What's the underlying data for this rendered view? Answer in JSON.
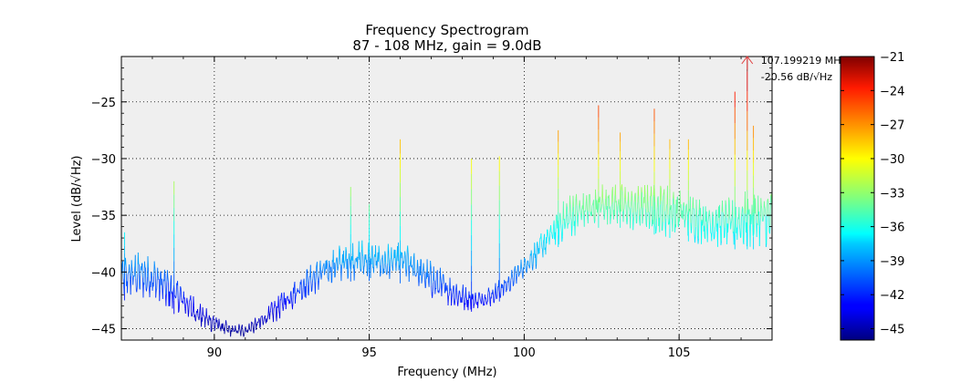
{
  "chart_data": {
    "type": "line",
    "title": "Frequency Spectrogram",
    "subtitle": "87 - 108 MHz, gain = 9.0dB",
    "xlabel": "Frequency (MHz)",
    "ylabel": "Level (dB/√Hz)",
    "xlim": [
      87,
      108
    ],
    "ylim": [
      -46,
      -21
    ],
    "x_ticks": [
      "90",
      "95",
      "100",
      "105"
    ],
    "x_tick_values": [
      90,
      95,
      100,
      105
    ],
    "y_ticks": [
      "−45",
      "−40",
      "−35",
      "−30",
      "−25"
    ],
    "y_tick_values": [
      -45,
      -40,
      -35,
      -30,
      -25
    ],
    "grid": true,
    "plot_background": "#efefef",
    "colormap": "jet",
    "colorbar": {
      "range": [
        -46,
        -21
      ],
      "ticks": [
        "−21",
        "−24",
        "−27",
        "−30",
        "−33",
        "−36",
        "−39",
        "−42",
        "−45"
      ],
      "tick_values": [
        -21,
        -24,
        -27,
        -30,
        -33,
        -36,
        -39,
        -42,
        -45
      ]
    },
    "peak_annotation": {
      "frequency_label": "107.199219 MHz",
      "level_label": "-20.56 dB/√Hz",
      "x": 107.199219,
      "y": -20.56,
      "marker_color": "#e04040"
    },
    "spectrum_envelope": {
      "x": [
        87.0,
        87.5,
        88.0,
        88.5,
        89.0,
        89.5,
        90.0,
        90.5,
        91.0,
        91.5,
        92.0,
        92.5,
        93.0,
        93.5,
        94.0,
        94.5,
        95.0,
        95.5,
        96.0,
        96.5,
        97.0,
        97.5,
        98.0,
        98.5,
        99.0,
        99.5,
        100.0,
        100.5,
        101.0,
        101.5,
        102.0,
        102.5,
        103.0,
        103.5,
        104.0,
        104.5,
        105.0,
        105.5,
        106.0,
        106.5,
        107.0,
        107.5,
        108.0
      ],
      "upper": [
        -38.5,
        -38.0,
        -38.5,
        -39.5,
        -41.0,
        -42.5,
        -43.5,
        -44.5,
        -44.5,
        -43.5,
        -42.0,
        -40.5,
        -39.5,
        -38.5,
        -37.5,
        -37.0,
        -37.0,
        -37.5,
        -37.0,
        -38.0,
        -39.0,
        -40.0,
        -41.0,
        -41.5,
        -41.0,
        -40.0,
        -38.5,
        -36.5,
        -34.5,
        -33.0,
        -32.5,
        -32.0,
        -32.0,
        -32.5,
        -32.0,
        -32.0,
        -32.5,
        -33.0,
        -33.5,
        -33.5,
        -33.0,
        -32.5,
        -32.5
      ],
      "lower": [
        -42.5,
        -42.5,
        -42.5,
        -43.5,
        -44.0,
        -45.0,
        -45.5,
        -45.8,
        -45.8,
        -45.3,
        -44.5,
        -43.5,
        -42.5,
        -41.5,
        -41.0,
        -40.8,
        -40.8,
        -41.0,
        -41.0,
        -41.5,
        -42.5,
        -43.0,
        -43.5,
        -43.5,
        -43.0,
        -42.0,
        -40.5,
        -39.5,
        -38.0,
        -37.0,
        -36.5,
        -36.0,
        -36.0,
        -36.5,
        -36.5,
        -37.0,
        -37.0,
        -37.5,
        -37.8,
        -38.0,
        -38.0,
        -38.0,
        -38.0
      ]
    },
    "spikes": [
      {
        "x": 87.1,
        "y": -36.5
      },
      {
        "x": 88.7,
        "y": -32.0
      },
      {
        "x": 94.4,
        "y": -32.5
      },
      {
        "x": 95.0,
        "y": -34.0
      },
      {
        "x": 96.0,
        "y": -28.3
      },
      {
        "x": 98.3,
        "y": -30.0
      },
      {
        "x": 99.2,
        "y": -29.8
      },
      {
        "x": 101.1,
        "y": -27.5
      },
      {
        "x": 102.4,
        "y": -25.3
      },
      {
        "x": 103.1,
        "y": -27.7
      },
      {
        "x": 104.2,
        "y": -25.6
      },
      {
        "x": 104.7,
        "y": -28.3
      },
      {
        "x": 105.3,
        "y": -28.3
      },
      {
        "x": 106.8,
        "y": -24.1
      },
      {
        "x": 107.2,
        "y": -20.6
      },
      {
        "x": 107.4,
        "y": -27.1
      }
    ]
  }
}
